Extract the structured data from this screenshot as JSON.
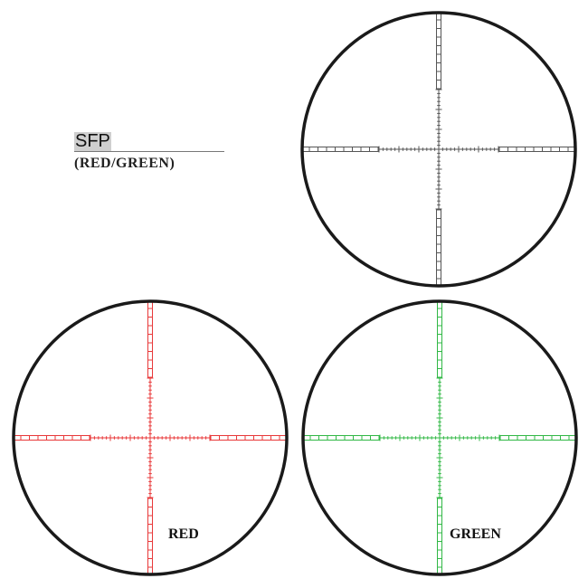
{
  "heading": {
    "title": "SFP",
    "subtitle": "(RED/GREEN)"
  },
  "reticles": [
    {
      "name": "black",
      "color": "#555555",
      "label": ""
    },
    {
      "name": "red",
      "color": "#e8393a",
      "label": "RED"
    },
    {
      "name": "green",
      "color": "#32b846",
      "label": "GREEN"
    }
  ]
}
